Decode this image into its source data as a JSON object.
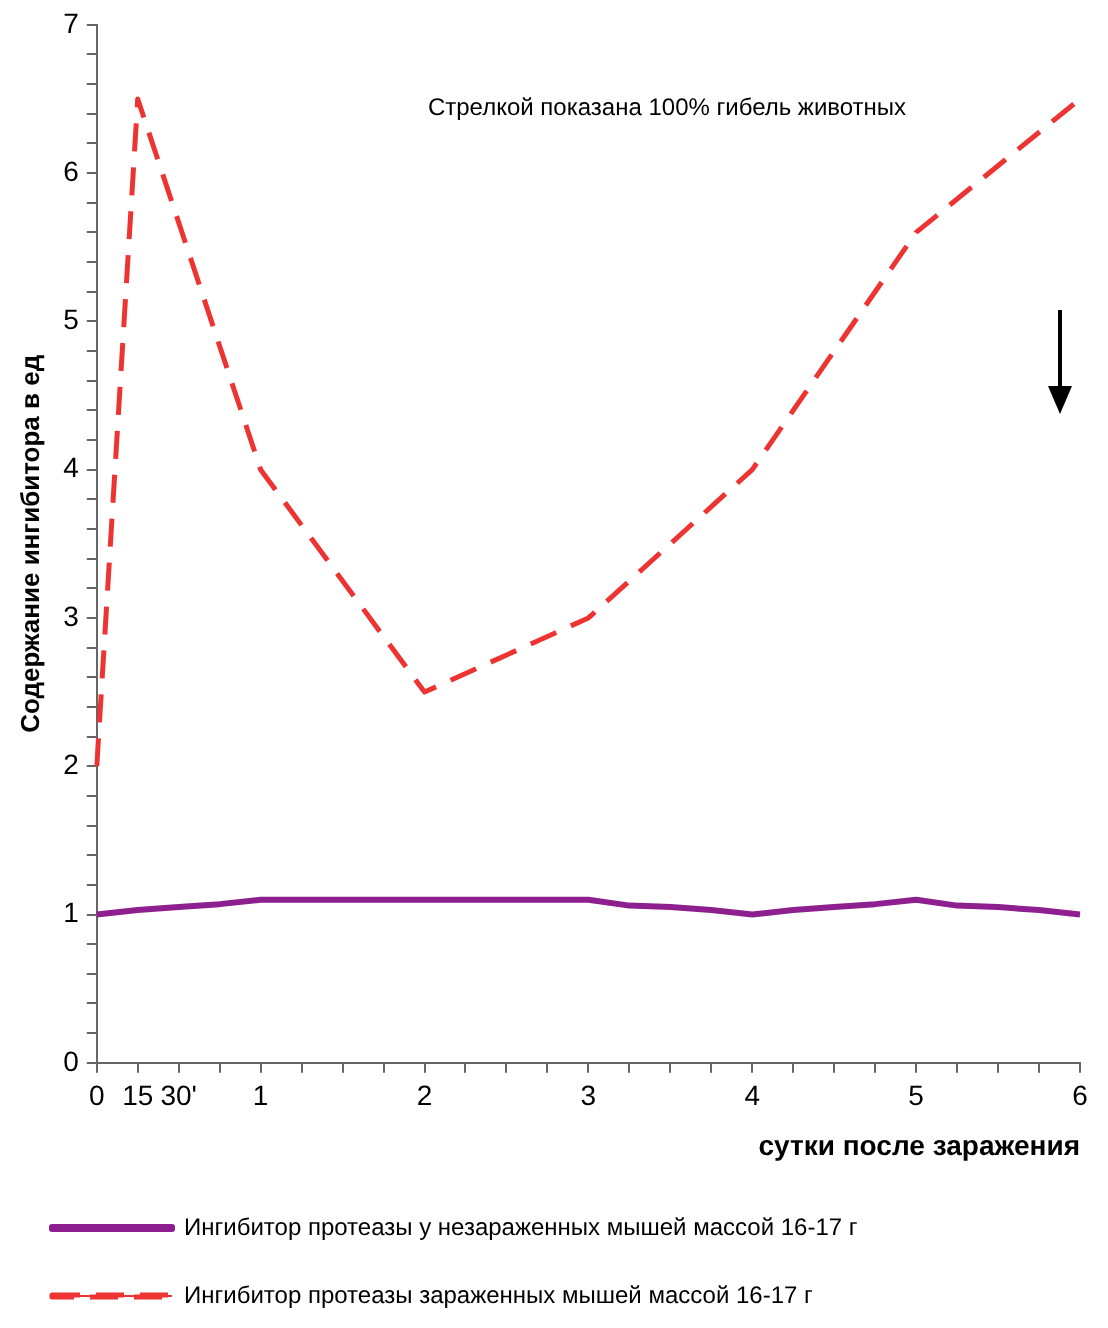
{
  "chart_data": {
    "type": "line",
    "ylabel": "Содержание ингибитора в ед",
    "xlabel": "сутки после заражения",
    "annotations": [
      "Стрелкой показана 100% гибель животных"
    ],
    "categories": [
      "0",
      "15",
      "30'",
      null,
      "1",
      null,
      null,
      null,
      "2",
      null,
      null,
      null,
      "3",
      null,
      null,
      null,
      "4",
      null,
      null,
      null,
      "5",
      null,
      null,
      null,
      "6"
    ],
    "ylim": [
      0,
      7
    ],
    "yticks": [
      0,
      {
        "value": 0.2,
        "label": null
      },
      {
        "value": 0.4,
        "label": null
      },
      {
        "value": 0.6,
        "label": null
      },
      {
        "value": 0.8,
        "label": null
      },
      1,
      {
        "value": 1.2,
        "label": null
      },
      {
        "value": 1.4,
        "label": null
      },
      {
        "value": 1.6,
        "label": null
      },
      {
        "value": 1.8,
        "label": null
      },
      2,
      {
        "value": 2.2,
        "label": null
      },
      {
        "value": 2.4,
        "label": null
      },
      {
        "value": 2.6,
        "label": null
      },
      {
        "value": 2.8,
        "label": null
      },
      3,
      {
        "value": 3.2,
        "label": null
      },
      {
        "value": 3.4,
        "label": null
      },
      {
        "value": 3.6,
        "label": null
      },
      {
        "value": 3.8,
        "label": null
      },
      4,
      {
        "value": 4.2,
        "label": null
      },
      {
        "value": 4.4,
        "label": null
      },
      {
        "value": 4.6,
        "label": null
      },
      {
        "value": 4.8,
        "label": null
      },
      5,
      {
        "value": 5.2,
        "label": null
      },
      {
        "value": 5.4,
        "label": null
      },
      {
        "value": 5.6,
        "label": null
      },
      {
        "value": 5.8,
        "label": null
      },
      6,
      {
        "value": 6.2,
        "label": null
      },
      {
        "value": 6.4,
        "label": null
      },
      {
        "value": 6.6,
        "label": null
      },
      {
        "value": 6.8,
        "label": null
      },
      7
    ],
    "grid": false,
    "legend": "bottom",
    "marker": "none",
    "series": [
      {
        "name": "Ингибитор протеазы у незараженных мышей массой 16-17 г",
        "color": "#8e1f8e",
        "line_style": "solid",
        "values": [
          1.0,
          1.03,
          1.05,
          1.07,
          1.1,
          1.1,
          1.1,
          1.1,
          1.1,
          1.1,
          1.1,
          1.1,
          1.1,
          1.06,
          1.05,
          1.03,
          1.0,
          1.03,
          1.05,
          1.07,
          1.1,
          1.06,
          1.05,
          1.03,
          1.0
        ]
      },
      {
        "name": "Ингибитор протеазы зараженных мышей массой 16-17 г",
        "color": "#ee3333",
        "line_style": "dashed",
        "values": [
          2,
          6.5,
          null,
          null,
          4,
          null,
          null,
          null,
          2.5,
          null,
          null,
          null,
          3,
          null,
          null,
          null,
          4,
          null,
          null,
          null,
          5.6,
          null,
          null,
          null,
          6.5
        ]
      }
    ]
  }
}
